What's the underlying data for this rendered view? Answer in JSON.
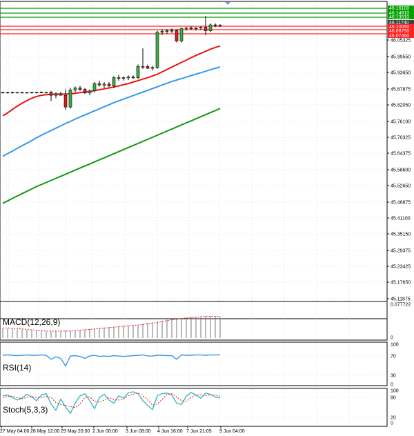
{
  "chart_data": [
    {
      "type": "candlestick",
      "panel": "price",
      "y_ticks": [
        "46.05325",
        "45.99550",
        "45.93650",
        "45.87875",
        "45.82050",
        "45.76100",
        "45.70325",
        "45.64375",
        "45.58600",
        "45.52650",
        "45.46875",
        "45.41100",
        "45.35150",
        "45.29375",
        "45.23425",
        "45.17650",
        "45.11875"
      ],
      "ylim": [
        45.11875,
        46.2
      ],
      "price_tags": [
        {
          "label": "46.16100",
          "value": 46.161,
          "color": "#00a000"
        },
        {
          "label": "46.14810",
          "value": 46.1481,
          "color": "#00a000"
        },
        {
          "label": "46.13510",
          "value": 46.1351,
          "color": "#00a000"
        },
        {
          "label": "46.11740",
          "value": 46.1174,
          "color": "#404040"
        },
        {
          "label": "46.10050",
          "value": 46.1005,
          "color": "#ff2020"
        },
        {
          "label": "46.08750",
          "value": 46.0875,
          "color": "#ff2020"
        },
        {
          "label": "46.07460",
          "value": 46.0746,
          "color": "#ff2020"
        }
      ],
      "candles": [
        [
          45.89,
          45.892,
          45.888,
          45.889
        ],
        [
          45.889,
          45.892,
          45.887,
          45.89
        ],
        [
          45.89,
          45.892,
          45.887,
          45.889
        ],
        [
          45.889,
          45.891,
          45.887,
          45.89
        ],
        [
          45.89,
          45.892,
          45.887,
          45.888
        ],
        [
          45.888,
          45.891,
          45.886,
          45.89
        ],
        [
          45.89,
          45.892,
          45.888,
          45.889
        ],
        [
          45.889,
          45.892,
          45.886,
          45.891
        ],
        [
          45.891,
          45.893,
          45.888,
          45.889
        ],
        [
          45.889,
          45.892,
          45.887,
          45.89
        ],
        [
          45.89,
          45.895,
          45.86,
          45.88
        ],
        [
          45.88,
          45.89,
          45.87,
          45.885
        ],
        [
          45.885,
          45.892,
          45.88,
          45.88
        ],
        [
          45.88,
          45.9,
          45.83,
          45.84
        ],
        [
          45.84,
          45.905,
          45.835,
          45.898
        ],
        [
          45.898,
          45.91,
          45.89,
          45.905
        ],
        [
          45.905,
          45.912,
          45.895,
          45.9
        ],
        [
          45.9,
          45.905,
          45.885,
          45.888
        ],
        [
          45.888,
          45.9,
          45.88,
          45.895
        ],
        [
          45.895,
          45.925,
          45.89,
          45.92
        ],
        [
          45.92,
          45.93,
          45.91,
          45.915
        ],
        [
          45.915,
          45.925,
          45.905,
          45.918
        ],
        [
          45.918,
          45.925,
          45.908,
          45.912
        ],
        [
          45.912,
          45.945,
          45.905,
          45.94
        ],
        [
          45.94,
          45.95,
          45.93,
          45.938
        ],
        [
          45.938,
          45.945,
          45.93,
          45.94
        ],
        [
          45.94,
          45.948,
          45.932,
          45.942
        ],
        [
          45.942,
          45.948,
          45.936,
          45.94
        ],
        [
          45.94,
          45.985,
          45.935,
          45.978
        ],
        [
          45.978,
          46.04,
          45.97,
          45.978
        ],
        [
          45.978,
          45.985,
          45.97,
          45.972
        ],
        [
          45.972,
          45.98,
          45.965,
          45.975
        ],
        [
          45.975,
          46.1,
          45.97,
          46.095
        ],
        [
          46.095,
          46.105,
          46.085,
          46.098
        ],
        [
          46.098,
          46.105,
          46.09,
          46.1
        ],
        [
          46.1,
          46.108,
          46.092,
          46.101
        ],
        [
          46.101,
          46.105,
          46.06,
          46.065
        ],
        [
          46.065,
          46.11,
          46.06,
          46.108
        ],
        [
          46.108,
          46.112,
          46.1,
          46.11
        ],
        [
          46.11,
          46.115,
          46.103,
          46.107
        ],
        [
          46.107,
          46.112,
          46.1,
          46.11
        ],
        [
          46.11,
          46.115,
          46.102,
          46.112
        ],
        [
          46.112,
          46.15,
          46.085,
          46.1
        ],
        [
          46.1,
          46.125,
          46.095,
          46.12
        ],
        [
          46.12,
          46.125,
          46.112,
          46.118
        ],
        [
          46.118,
          46.122,
          46.113,
          46.117
        ]
      ],
      "ma_red": [
        45.81,
        45.82,
        45.832,
        45.843,
        45.853,
        45.862,
        45.87,
        45.876,
        45.88,
        45.882,
        45.883,
        45.884,
        45.884,
        45.884,
        45.885,
        45.887,
        45.889,
        45.891,
        45.893,
        45.896,
        45.899,
        45.902,
        45.905,
        45.908,
        45.912,
        45.916,
        45.92,
        45.925,
        45.93,
        45.935,
        45.94,
        45.946,
        45.952,
        45.96,
        45.968,
        45.976,
        45.984,
        45.992,
        46.0,
        46.008,
        46.016,
        46.023,
        46.03,
        46.037,
        46.043,
        46.048
      ],
      "ma_blue": [
        45.672,
        45.681,
        45.69,
        45.699,
        45.708,
        45.717,
        45.726,
        45.735,
        45.744,
        45.752,
        45.76,
        45.768,
        45.776,
        45.784,
        45.791,
        45.799,
        45.806,
        45.813,
        45.82,
        45.827,
        45.834,
        45.841,
        45.848,
        45.855,
        45.861,
        45.867,
        45.873,
        45.879,
        45.885,
        45.891,
        45.897,
        45.903,
        45.909,
        45.915,
        45.921,
        45.927,
        45.932,
        45.937,
        45.942,
        45.947,
        45.952,
        45.957,
        45.962,
        45.967,
        45.972,
        45.977
      ],
      "ma_green": [
        45.512,
        45.52,
        45.529,
        45.537,
        45.545,
        45.553,
        45.561,
        45.569,
        45.576,
        45.583,
        45.59,
        45.597,
        45.604,
        45.611,
        45.618,
        45.625,
        45.632,
        45.639,
        45.646,
        45.653,
        45.66,
        45.667,
        45.674,
        45.681,
        45.688,
        45.695,
        45.702,
        45.709,
        45.716,
        45.723,
        45.73,
        45.737,
        45.744,
        45.751,
        45.758,
        45.765,
        45.772,
        45.779,
        45.786,
        45.793,
        45.8,
        45.807,
        45.814,
        45.821,
        45.828,
        45.835
      ]
    },
    {
      "type": "bar",
      "panel": "macd",
      "label": "MACD(12,26,9)",
      "y_ticks": [
        "0.077722",
        "0"
      ],
      "ylim": [
        0,
        0.0777
      ],
      "histogram": [
        0.022,
        0.022,
        0.021,
        0.02,
        0.02,
        0.019,
        0.018,
        0.017,
        0.016,
        0.015,
        0.015,
        0.016,
        0.017,
        0.016,
        0.017,
        0.018,
        0.019,
        0.02,
        0.021,
        0.022,
        0.023,
        0.024,
        0.025,
        0.026,
        0.027,
        0.028,
        0.029,
        0.03,
        0.031,
        0.033,
        0.035,
        0.036,
        0.038,
        0.04,
        0.042,
        0.044,
        0.045,
        0.046,
        0.047,
        0.048,
        0.049,
        0.05,
        0.05,
        0.05,
        0.05,
        0.049
      ],
      "signal": [
        0.023,
        0.023,
        0.022,
        0.022,
        0.021,
        0.02,
        0.019,
        0.018,
        0.017,
        0.016,
        0.016,
        0.016,
        0.016,
        0.016,
        0.016,
        0.017,
        0.018,
        0.019,
        0.02,
        0.021,
        0.022,
        0.023,
        0.024,
        0.025,
        0.026,
        0.027,
        0.028,
        0.029,
        0.03,
        0.031,
        0.033,
        0.034,
        0.036,
        0.038,
        0.04,
        0.042,
        0.043,
        0.045,
        0.046,
        0.047,
        0.048,
        0.049,
        0.05,
        0.05,
        0.05,
        0.05
      ]
    },
    {
      "type": "line",
      "panel": "rsi",
      "label": "RSI(14)",
      "y_ticks": [
        "100",
        "70",
        "30",
        "0"
      ],
      "ylim": [
        0,
        100
      ],
      "values": [
        72,
        73,
        72,
        71,
        72,
        73,
        72,
        72,
        73,
        72,
        62,
        68,
        64,
        45,
        70,
        71,
        69,
        64,
        70,
        72,
        69,
        70,
        69,
        71,
        70,
        69,
        70,
        71,
        72,
        73,
        70,
        70,
        72,
        72,
        71,
        71,
        62,
        73,
        72,
        72,
        73,
        73,
        72,
        73,
        73,
        73
      ]
    },
    {
      "type": "line",
      "panel": "stoch",
      "label": "Stoch(5,3,3)",
      "y_ticks": [
        "100",
        "80",
        "20",
        "0"
      ],
      "ylim": [
        0,
        100
      ],
      "k": [
        85,
        88,
        80,
        72,
        78,
        90,
        82,
        70,
        88,
        92,
        60,
        40,
        75,
        50,
        30,
        62,
        85,
        92,
        70,
        45,
        80,
        90,
        72,
        62,
        85,
        78,
        95,
        98,
        92,
        70,
        55,
        42,
        86,
        92,
        94,
        88,
        62,
        58,
        84,
        96,
        88,
        78,
        94,
        90,
        82,
        78
      ],
      "d": [
        80,
        84,
        84,
        80,
        76,
        80,
        83,
        80,
        80,
        83,
        80,
        64,
        58,
        55,
        52,
        48,
        60,
        80,
        82,
        68,
        65,
        72,
        80,
        74,
        72,
        75,
        86,
        90,
        95,
        86,
        72,
        56,
        60,
        74,
        90,
        92,
        82,
        70,
        68,
        80,
        88,
        88,
        86,
        88,
        88,
        84
      ]
    }
  ],
  "x_axis": {
    "labels": [
      "27 May 04:00",
      "28 May 12:00",
      "29 May 20:00",
      "2 Jun 00:00",
      "3 Jun 08:00",
      "4 Jun 16:00",
      "7 Jun 21:05",
      "9 Jun 04:00"
    ]
  },
  "colors": {
    "ma_red": "#ee1111",
    "ma_blue": "#3399ee",
    "ma_green": "#119911",
    "signal": "#ee1111",
    "rsi": "#3399ee",
    "stoch_k": "#2bb3c0",
    "stoch_d": "#ee1111"
  }
}
